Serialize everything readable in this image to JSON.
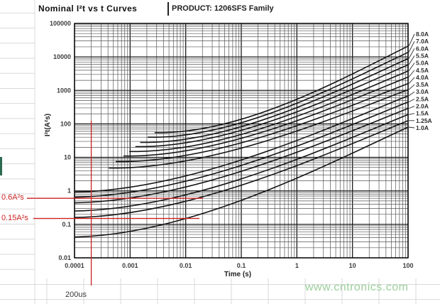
{
  "header": {
    "title": "Nominal I²t vs t Curves",
    "product": "PRODUCT:  1206SFS Family"
  },
  "watermark": "www.cntronics.com",
  "colors": {
    "annotation_red": "#cc2222",
    "curve_black": "#141414",
    "grid_major": "#1c1c1c",
    "grid_minor": "#555555",
    "sheet_line": "#d9d9d9",
    "watermark_green": "#9ccf9c"
  },
  "chart_data": {
    "type": "line",
    "title": "Nominal I²t vs t Curves",
    "x_axis": {
      "label": "Time (s)",
      "scale": "log",
      "range": [
        0.0001,
        100
      ],
      "ticks": [
        "0.0001",
        "0.001",
        "0.01",
        "0.1",
        "1",
        "10",
        "100"
      ]
    },
    "y_axis": {
      "label": "I²t(A²s)",
      "scale": "log",
      "range": [
        0.01,
        100000
      ],
      "ticks": [
        "100000",
        "10000",
        "1000",
        "100",
        "10",
        "1",
        "0.1",
        "0.01"
      ]
    },
    "grid": true,
    "legend_position": "right",
    "series": [
      {
        "name": "8.0A",
        "points": [
          [
            0.004,
            55
          ],
          [
            100,
            21000
          ]
        ]
      },
      {
        "name": "7.0A",
        "points": [
          [
            0.003,
            40
          ],
          [
            100,
            13700
          ]
        ]
      },
      {
        "name": "6.0A",
        "points": [
          [
            0.0022,
            28
          ],
          [
            100,
            8900
          ]
        ]
      },
      {
        "name": "5.5A",
        "points": [
          [
            0.0018,
            21
          ],
          [
            100,
            5800
          ]
        ]
      },
      {
        "name": "5.0A",
        "points": [
          [
            0.0014,
            15
          ],
          [
            100,
            3800
          ]
        ]
      },
      {
        "name": "4.5A",
        "points": [
          [
            0.0011,
            11
          ],
          [
            100,
            2500
          ]
        ]
      },
      {
        "name": "4.0A",
        "points": [
          [
            0.0008,
            7.5
          ],
          [
            100,
            1600
          ]
        ]
      },
      {
        "name": "3.5A",
        "points": [
          [
            0.0006,
            4.8
          ],
          [
            100,
            1050
          ]
        ]
      },
      {
        "name": "3.0A",
        "points": [
          [
            0.0001,
            0.92
          ],
          [
            100,
            690
          ]
        ]
      },
      {
        "name": "2.5A",
        "points": [
          [
            0.0001,
            0.65
          ],
          [
            100,
            450
          ]
        ]
      },
      {
        "name": "2.0A",
        "points": [
          [
            0.0001,
            0.44
          ],
          [
            100,
            290
          ]
        ]
      },
      {
        "name": "1.5A",
        "points": [
          [
            0.0001,
            0.25
          ],
          [
            100,
            190
          ]
        ]
      },
      {
        "name": "1.25A",
        "points": [
          [
            0.0001,
            0.16
          ],
          [
            100,
            125
          ]
        ]
      },
      {
        "name": "1.0A",
        "points": [
          [
            0.0001,
            0.042
          ],
          [
            100,
            80
          ]
        ]
      }
    ],
    "annotations": {
      "h_lines": [
        {
          "label": "0.6A²s",
          "value": 0.6
        },
        {
          "label": "0.15A²s",
          "value": 0.15
        }
      ],
      "v_line": {
        "label": "200us",
        "value": 0.0002
      }
    }
  }
}
